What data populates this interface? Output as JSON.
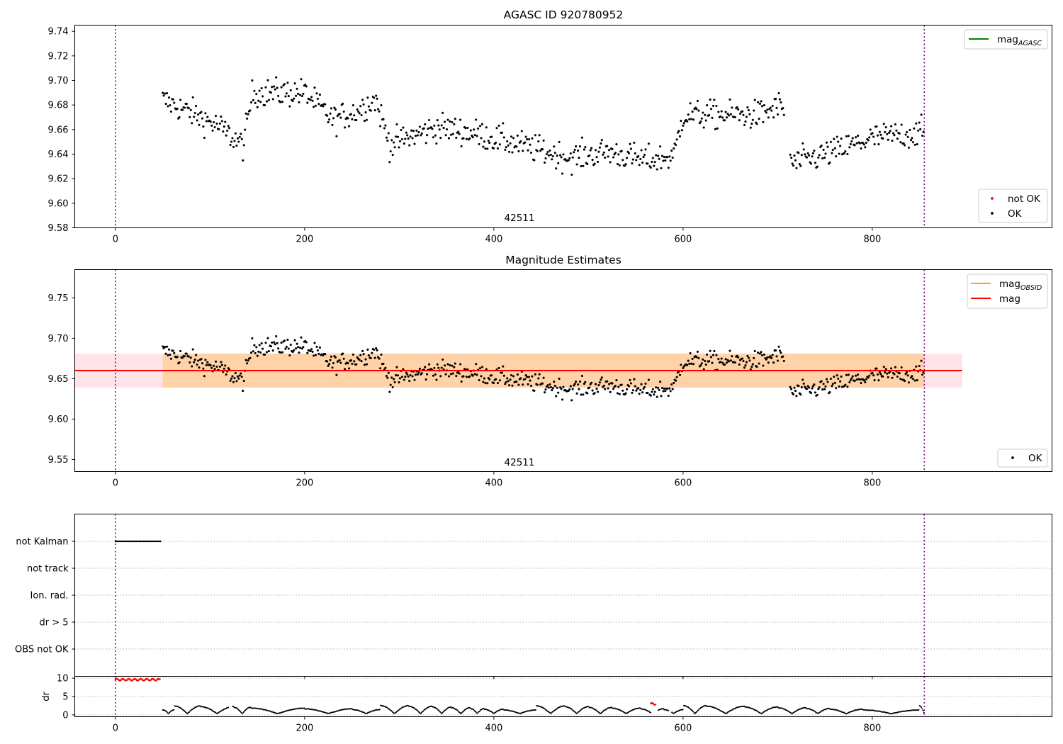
{
  "chart_data": [
    {
      "type": "scatter",
      "title": "AGASC ID 920780952",
      "xlim": [
        -43,
        990
      ],
      "ylim": [
        9.58,
        9.745
      ],
      "xticks": [
        0,
        200,
        400,
        600,
        800
      ],
      "yticks": [
        9.58,
        9.6,
        9.62,
        9.64,
        9.66,
        9.68,
        9.7,
        9.72,
        9.74
      ],
      "obs_label": "42511",
      "obs_boundaries": [
        0,
        855
      ],
      "legend_top": [
        {
          "label": "mag",
          "sub": "AGASC",
          "color": "#008000",
          "kind": "line"
        }
      ],
      "legend_bottom": [
        {
          "label": "not OK",
          "color": "#ff0000",
          "kind": "dot"
        },
        {
          "label": "OK",
          "color": "#000000",
          "kind": "dot"
        }
      ],
      "series": [
        {
          "name": "OK",
          "color": "#000000",
          "x_range": [
            50,
            855
          ],
          "mean": 9.66
        }
      ]
    },
    {
      "type": "scatter",
      "title": "Magnitude Estimates",
      "xlim": [
        -43,
        990
      ],
      "ylim": [
        9.535,
        9.785
      ],
      "xticks": [
        0,
        200,
        400,
        600,
        800
      ],
      "yticks": [
        9.55,
        9.6,
        9.65,
        9.7,
        9.75
      ],
      "obs_label": "42511",
      "obs_boundaries": [
        0,
        855
      ],
      "mag": 9.66,
      "band_pink": [
        9.639,
        9.681,
        -43,
        895
      ],
      "band_orange": [
        9.639,
        9.681,
        50,
        855
      ],
      "legend_top": [
        {
          "label": "mag",
          "sub": "OBSID",
          "color": "#ffa500",
          "kind": "line"
        },
        {
          "label": "mag",
          "sub": "",
          "color": "#ff0000",
          "kind": "line"
        }
      ],
      "legend_bottom": [
        {
          "label": "OK",
          "color": "#000000",
          "kind": "dot"
        }
      ],
      "series": [
        {
          "name": "OK",
          "color": "#000000",
          "x_range": [
            50,
            855
          ],
          "mean": 9.66
        }
      ]
    },
    {
      "type": "scatter",
      "title": "",
      "xlim": [
        -43,
        990
      ],
      "categories": [
        "not Kalman",
        "not track",
        "Ion. rad.",
        "dr > 5",
        "OBS not OK"
      ],
      "flag_segments": [
        {
          "category": "not Kalman",
          "x": [
            0,
            48
          ]
        }
      ],
      "obs_boundaries": [
        0,
        855
      ]
    },
    {
      "type": "scatter",
      "title": "",
      "ylabel": "dr",
      "xlim": [
        -43,
        990
      ],
      "ylim": [
        -0.5,
        10.5
      ],
      "xticks": [
        0,
        200,
        400,
        600,
        800
      ],
      "yticks": [
        0,
        5,
        10
      ],
      "obs_boundaries": [
        0,
        855
      ],
      "red_segments": [
        {
          "x": [
            0,
            48
          ],
          "y": 9.6
        },
        {
          "x": [
            566,
            572
          ],
          "y": 3.0
        }
      ],
      "series": [
        {
          "name": "dr",
          "color": "#000000",
          "x_range": [
            50,
            855
          ]
        }
      ]
    }
  ]
}
